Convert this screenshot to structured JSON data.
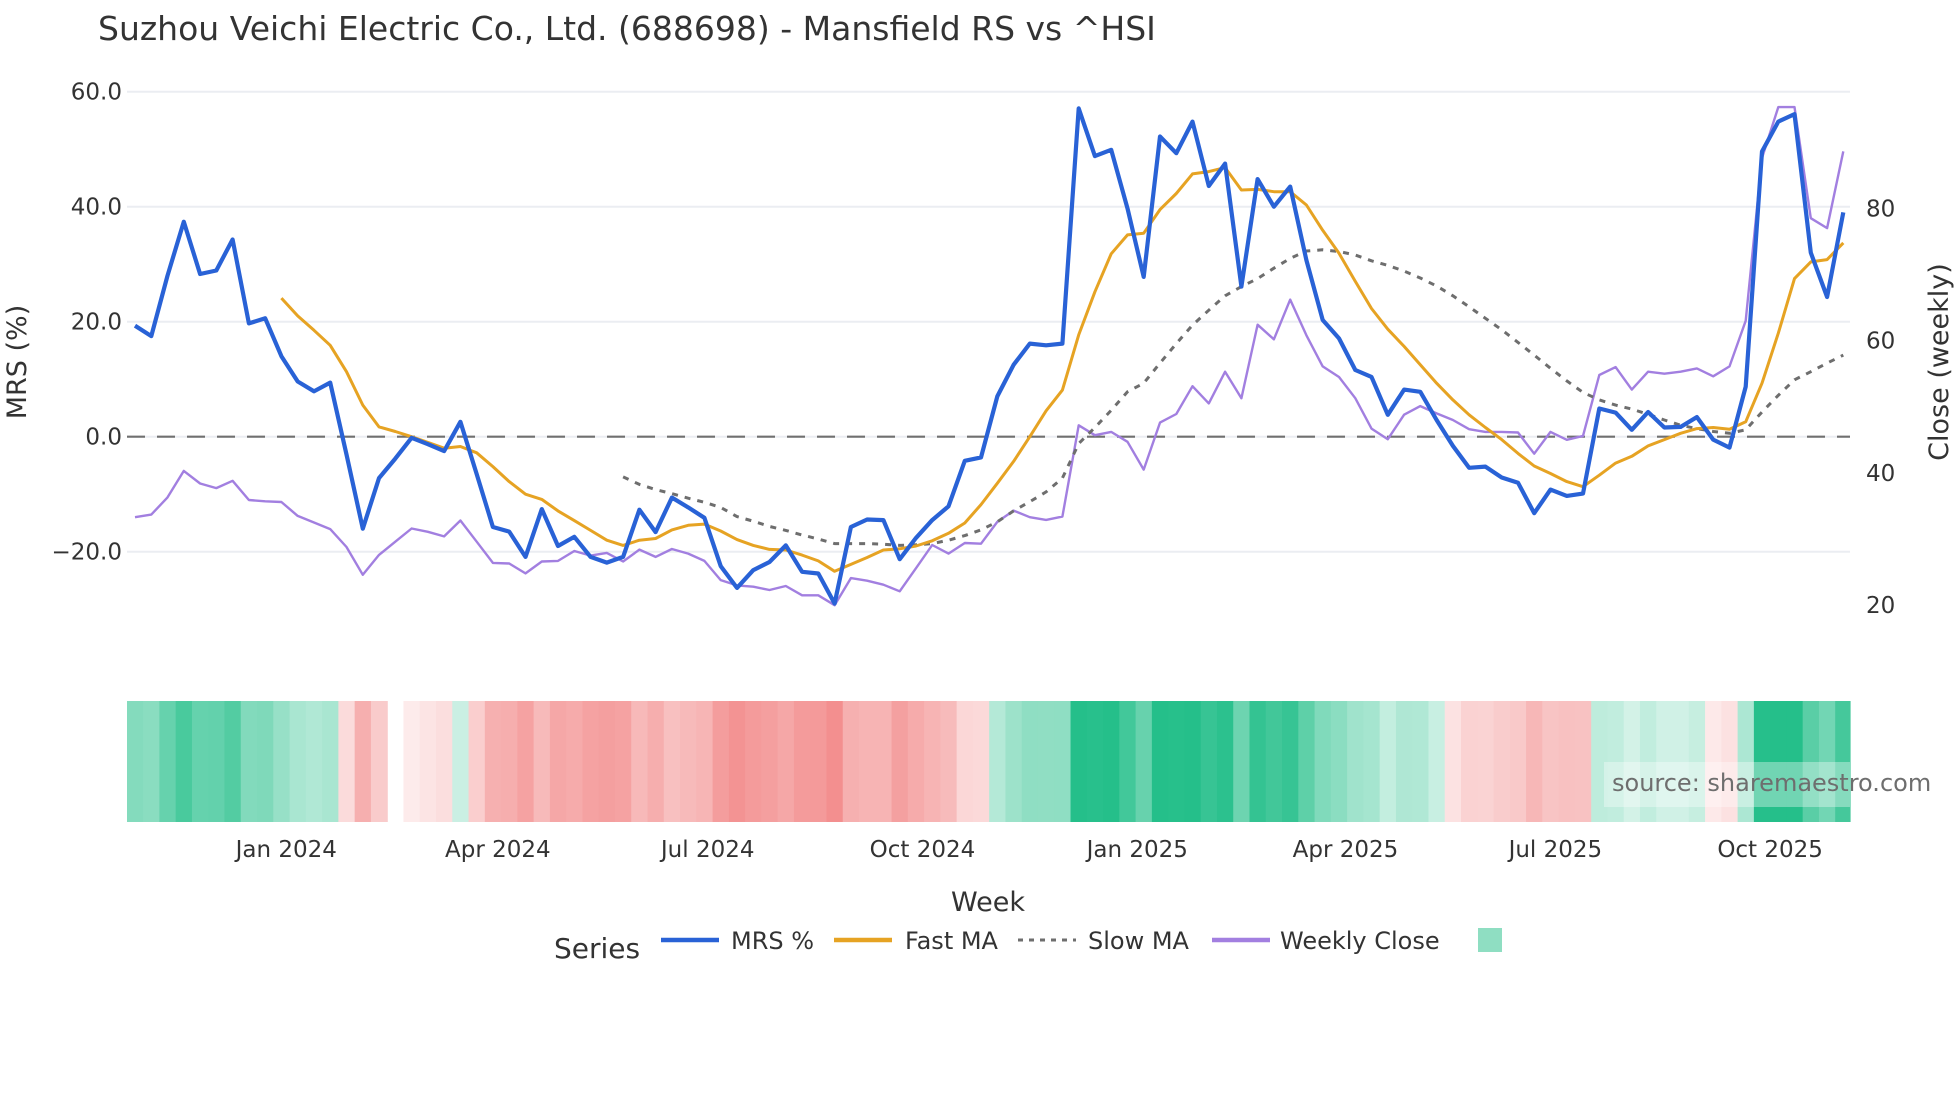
{
  "title": "Suzhou Veichi Electric Co., Ltd. (688698) - Mansfield RS vs ^HSI",
  "axes": {
    "y_left_title": "MRS (%)",
    "y_right_title": "Close (weekly)",
    "x_title": "Week",
    "y_left_ticks": [
      "60.0",
      "40.0",
      "20.0",
      "0.0",
      "−20.0"
    ],
    "y_right_ticks": [
      "80",
      "60",
      "40",
      "20"
    ],
    "x_ticks": [
      "Jan 2024",
      "Apr 2024",
      "Jul 2024",
      "Oct 2024",
      "Jan 2025",
      "Apr 2025",
      "Jul 2025",
      "Oct 2025"
    ]
  },
  "legend": {
    "title": "Series",
    "items": [
      {
        "label": "MRS %",
        "color": "#2962d6",
        "style": "solid"
      },
      {
        "label": "Fast MA",
        "color": "#e6a323",
        "style": "solid"
      },
      {
        "label": "Slow MA",
        "color": "#6e6e6e",
        "style": "dotted"
      },
      {
        "label": "Weekly Close",
        "color": "#a27fe0",
        "style": "solid"
      },
      {
        "label": "",
        "color": "#8fdec2",
        "style": "swatch"
      }
    ]
  },
  "source": "source: sharemaestro.com",
  "colors": {
    "mrs": "#2962d6",
    "fast_ma": "#e6a323",
    "slow_ma": "#6e6e6e",
    "close": "#a27fe0",
    "heat_pos": "#25bf8a",
    "heat_neg": "#f28a8a",
    "grid": "#ebedf2",
    "zero_line": "#707070"
  },
  "chart_data": {
    "type": "line",
    "title": "Suzhou Veichi Electric Co., Ltd. (688698) - Mansfield RS vs ^HSI",
    "xlabel": "Week",
    "ylabel": "MRS (%)",
    "y2label": "Close (weekly)",
    "ylim": [
      -32,
      62
    ],
    "y2lim": [
      15,
      97
    ],
    "grid": true,
    "legend_position": "bottom",
    "x_start": "2023-11 (weekly)",
    "x_tick_labels": [
      "Jan 2024",
      "Apr 2024",
      "Jul 2024",
      "Oct 2024",
      "Jan 2025",
      "Apr 2025",
      "Jul 2025",
      "Oct 2025"
    ],
    "x_tick_index": [
      9.3,
      22.3,
      35.2,
      48.4,
      61.6,
      74.4,
      87.3,
      100.5
    ],
    "n_weeks": 106,
    "series": [
      {
        "name": "MRS %",
        "axis": "left",
        "start_index": 0,
        "values": [
          19.3,
          17.5,
          28,
          37.4,
          28.3,
          28.9,
          34.3,
          19.7,
          20.6,
          14,
          9.6,
          7.9,
          9.4,
          -3.1,
          -16,
          -7.2,
          -3.8,
          -0.2,
          -1.3,
          -2.5,
          2.6,
          -6.5,
          -15.7,
          -16.5,
          -20.9,
          -12.6,
          -19,
          -17.4,
          -20.9,
          -21.9,
          -20.9,
          -12.7,
          -16.6,
          -10.6,
          -12.3,
          -14.1,
          -22.5,
          -26.3,
          -23.2,
          -21.8,
          -18.9,
          -23.5,
          -23.8,
          -29,
          -15.7,
          -14.4,
          -14.5,
          -21.3,
          -17.6,
          -14.5,
          -12.1,
          -4.2,
          -3.6,
          7,
          12.5,
          16.2,
          15.9,
          16.2,
          57.1,
          48.8,
          49.9,
          39.7,
          27.8,
          52.2,
          49.3,
          54.8,
          43.6,
          47.5,
          26.1,
          44.8,
          40,
          43.5,
          30.7,
          20.3,
          17.1,
          11.6,
          10.4,
          3.8,
          8.2,
          7.8,
          2.9,
          -1.6,
          -5.4,
          -5.2,
          -7.1,
          -8,
          -13.3,
          -9.2,
          -10.3,
          -9.9,
          4.9,
          4.2,
          1.2,
          4.3,
          1.6,
          1.7,
          3.4,
          -0.5,
          -1.9,
          8.7,
          49.6,
          54.8,
          56.1,
          32,
          24.3,
          39
        ]
      },
      {
        "name": "Fast MA",
        "axis": "left",
        "start_index": 9,
        "values": [
          24.1,
          21,
          18.5,
          15.9,
          11.3,
          5.5,
          1.7,
          0.9,
          0,
          -1,
          -2,
          -1.7,
          -2.8,
          -5.2,
          -7.8,
          -10,
          -10.9,
          -12.9,
          -14.6,
          -16.3,
          -18,
          -18.9,
          -18,
          -17.7,
          -16.2,
          -15.4,
          -15.2,
          -16.4,
          -17.9,
          -18.9,
          -19.6,
          -19.7,
          -20.6,
          -21.6,
          -23.4,
          -22.2,
          -21,
          -19.7,
          -19.5,
          -19,
          -18.1,
          -16.8,
          -15,
          -11.8,
          -8.1,
          -4.3,
          0,
          4.5,
          8.1,
          17.7,
          25.2,
          31.8,
          35.1,
          35.4,
          39.5,
          42.3,
          45.7,
          46.1,
          46.8,
          42.9,
          43,
          42.6,
          42.6,
          40.3,
          35.9,
          31.9,
          27,
          22.3,
          18.7,
          15.7,
          12.5,
          9.3,
          6.4,
          3.8,
          1.6,
          -0.5,
          -2.9,
          -5.1,
          -6.4,
          -7.8,
          -8.7,
          -6.7,
          -4.6,
          -3.4,
          -1.6,
          -0.5,
          0.6,
          1.4,
          1.6,
          1.3,
          2.6,
          9.3,
          18,
          27.5,
          30.4,
          30.8,
          33.7
        ]
      },
      {
        "name": "Slow MA",
        "axis": "left",
        "start_index": 30,
        "values": [
          -7,
          -8.3,
          -9.2,
          -9.9,
          -10.7,
          -11.4,
          -12.3,
          -13.9,
          -14.7,
          -15.6,
          -16.3,
          -17.1,
          -17.8,
          -18.6,
          -18.6,
          -18.6,
          -18.7,
          -18.9,
          -18.8,
          -18.6,
          -18,
          -17.2,
          -16.2,
          -14.8,
          -12.9,
          -11.3,
          -9.6,
          -7.2,
          -1.2,
          1.6,
          4.6,
          7.8,
          9.3,
          12.8,
          16.2,
          19.4,
          22,
          24.5,
          26.1,
          27.5,
          29.3,
          31,
          32.3,
          32.5,
          32.2,
          31.6,
          30.6,
          29.8,
          28.8,
          27.6,
          26.2,
          24.5,
          22.6,
          20.6,
          18.6,
          16.4,
          14.2,
          11.9,
          9.7,
          7.7,
          6.4,
          5.5,
          4.8,
          3.9,
          2.9,
          2,
          1.4,
          0.9,
          0.6,
          1.2,
          4.3,
          7.2,
          9.9,
          11.3,
          12.8,
          14.2
        ]
      },
      {
        "name": "Weekly Close",
        "axis": "right",
        "start_index": 0,
        "values": [
          33.3,
          33.7,
          36.3,
          40.3,
          38.4,
          37.7,
          38.8,
          35.9,
          35.7,
          35.6,
          33.5,
          32.5,
          31.5,
          28.8,
          24.6,
          27.6,
          29.6,
          31.6,
          31.1,
          30.4,
          32.8,
          29.6,
          26.4,
          26.3,
          24.8,
          26.6,
          26.7,
          28.2,
          27.5,
          27.9,
          26.6,
          28.4,
          27.3,
          28.5,
          27.8,
          26.7,
          23.8,
          23,
          22.8,
          22.3,
          22.9,
          21.5,
          21.5,
          20,
          24.1,
          23.7,
          23.1,
          22.1,
          25.6,
          29.1,
          27.8,
          29.4,
          29.3,
          32.6,
          34.3,
          33.3,
          32.9,
          33.4,
          47.2,
          45.7,
          46.2,
          44.7,
          40.5,
          47.6,
          48.9,
          53.1,
          50.5,
          55.3,
          51.3,
          62.4,
          60.2,
          66.2,
          60.8,
          56.1,
          54.5,
          51.3,
          46.7,
          45.1,
          48.8,
          50.1,
          49,
          48,
          46.6,
          46.2,
          46.2,
          46.1,
          42.9,
          46.2,
          45,
          45.6,
          54.8,
          56,
          52.6,
          55.3,
          55,
          55.3,
          55.8,
          54.6,
          56.1,
          63,
          87.6,
          95.3,
          95.3,
          78.5,
          77,
          88.6
        ]
      }
    ],
    "heatmap": {
      "description": "MRS regime strip (green = positive, red = negative)",
      "missing_index": [
        16
      ]
    },
    "reference_lines": [
      {
        "axis": "left",
        "value": 0,
        "style": "dashed"
      }
    ]
  }
}
